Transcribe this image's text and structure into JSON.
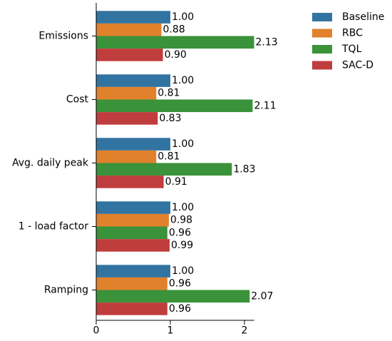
{
  "chart_data": {
    "type": "bar",
    "orientation": "horizontal",
    "categories": [
      "Emissions",
      "Cost",
      "Avg. daily peak",
      "1 - load factor",
      "Ramping"
    ],
    "series": [
      {
        "name": "Baseline",
        "color": "#3274a1",
        "values": [
          1.0,
          1.0,
          1.0,
          1.0,
          1.0
        ],
        "labels": [
          "1.00",
          "1.00",
          "1.00",
          "1.00",
          "1.00"
        ]
      },
      {
        "name": "RBC",
        "color": "#e1812c",
        "values": [
          0.88,
          0.81,
          0.81,
          0.98,
          0.96
        ],
        "labels": [
          "0.88",
          "0.81",
          "0.81",
          "0.98",
          "0.96"
        ]
      },
      {
        "name": "TQL",
        "color": "#3a923a",
        "values": [
          2.13,
          2.11,
          1.83,
          0.96,
          2.07
        ],
        "labels": [
          "2.13",
          "2.11",
          "1.83",
          "0.96",
          "2.07"
        ]
      },
      {
        "name": "SAC-D",
        "color": "#c03d3e",
        "values": [
          0.9,
          0.83,
          0.91,
          0.99,
          0.96
        ],
        "labels": [
          "0.90",
          "0.83",
          "0.91",
          "0.99",
          "0.96"
        ]
      }
    ],
    "xticks": [
      0,
      1,
      2
    ],
    "xtick_labels": [
      "0",
      "1",
      "2"
    ],
    "xlim": [
      0,
      2.13
    ],
    "legend_position": "top-right",
    "grid": false
  }
}
